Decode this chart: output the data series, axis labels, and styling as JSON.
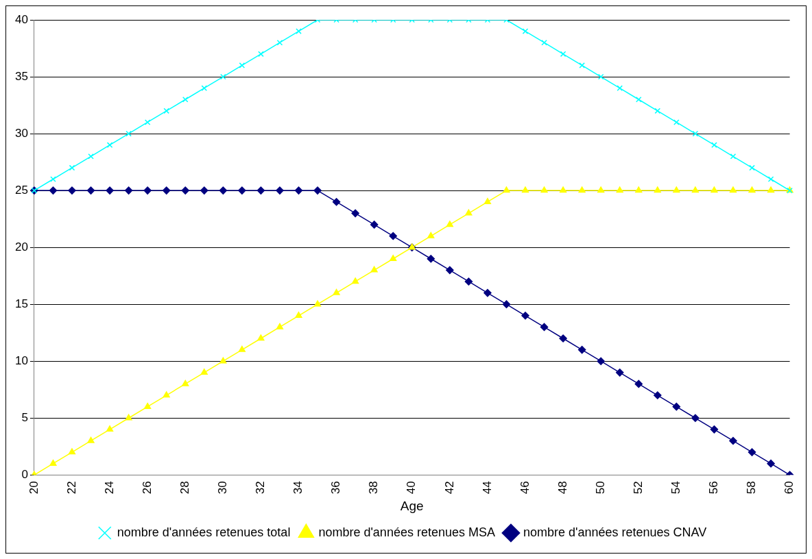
{
  "chart_data": {
    "type": "line",
    "xlabel": "Age",
    "categories": [
      "20",
      null,
      "22",
      null,
      "24",
      null,
      "26",
      null,
      "28",
      null,
      "30",
      null,
      "32",
      null,
      "34",
      null,
      "36",
      null,
      "38",
      null,
      "40",
      null,
      "42",
      null,
      "44",
      null,
      "46",
      null,
      "48",
      null,
      "50",
      null,
      "52",
      null,
      "54",
      null,
      "56",
      null,
      "58",
      null,
      "60"
    ],
    "series": [
      {
        "name": "nombre d'années retenues CNAV",
        "color": "#000080",
        "marker": "diamond",
        "values": [
          25,
          25,
          25,
          25,
          25,
          25,
          25,
          25,
          25,
          25,
          25,
          25,
          25,
          25,
          25,
          25,
          24,
          23,
          22,
          21,
          20,
          19,
          18,
          17,
          16,
          15,
          14,
          13,
          12,
          11,
          10,
          9,
          8,
          7,
          6,
          5,
          4,
          3,
          2,
          1,
          0
        ]
      },
      {
        "name": "nombre d'années retenues MSA",
        "color": "#ffff00",
        "marker": "triangle",
        "values": [
          0,
          1,
          2,
          3,
          4,
          5,
          6,
          7,
          8,
          9,
          10,
          11,
          12,
          13,
          14,
          15,
          16,
          17,
          18,
          19,
          20,
          21,
          22,
          23,
          24,
          25,
          25,
          25,
          25,
          25,
          25,
          25,
          25,
          25,
          25,
          25,
          25,
          25,
          25,
          25,
          25
        ]
      },
      {
        "name": "nombre d'années retenues total",
        "color": "#00ffff",
        "marker": "cross",
        "values": [
          25,
          26,
          27,
          28,
          29,
          30,
          31,
          32,
          33,
          34,
          35,
          36,
          37,
          38,
          39,
          40,
          40,
          40,
          40,
          40,
          40,
          40,
          40,
          40,
          40,
          40,
          39,
          38,
          37,
          36,
          35,
          34,
          33,
          32,
          31,
          30,
          29,
          28,
          27,
          26,
          25
        ]
      }
    ],
    "ylim": [
      0,
      40
    ],
    "yticks": [
      0,
      5,
      10,
      15,
      20,
      25,
      30,
      35,
      40
    ],
    "grid": "y",
    "legend": "bottom",
    "line_style": "solid"
  }
}
